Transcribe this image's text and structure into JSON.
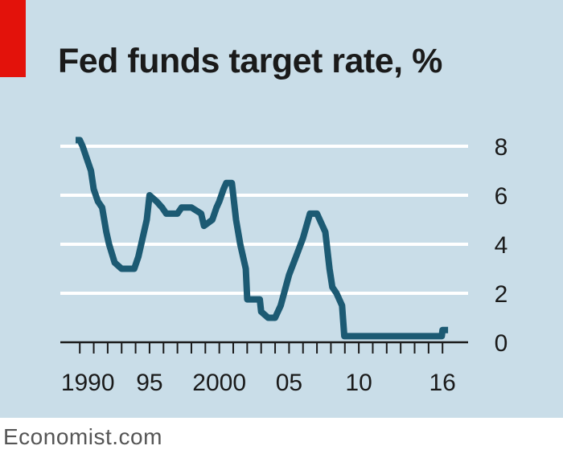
{
  "colors": {
    "background": "#c9dde8",
    "accent": "#e3120b",
    "line": "#1c5a73",
    "grid": "#ffffff",
    "text": "#1a1a1a",
    "source_text": "#555555"
  },
  "footer": {
    "source": "Economist.com"
  },
  "chart_data": {
    "type": "line",
    "title": "Fed funds target rate, %",
    "xlabel": "",
    "ylabel": "",
    "xlim": [
      1989.5,
      2016.5
    ],
    "ylim": [
      0,
      8
    ],
    "grid": true,
    "y_ticks": [
      0,
      2,
      4,
      6,
      8
    ],
    "y_tick_labels": [
      "0",
      "2",
      "4",
      "6",
      "8"
    ],
    "x_tick_labels": [
      {
        "value": 1990,
        "label": "1990"
      },
      {
        "value": 1995,
        "label": "95"
      },
      {
        "value": 2000,
        "label": "2000"
      },
      {
        "value": 2005,
        "label": "05"
      },
      {
        "value": 2010,
        "label": "10"
      },
      {
        "value": 2016,
        "label": "16"
      }
    ],
    "series": [
      {
        "x": [
          1989.7,
          1990.0,
          1990.2,
          1990.5,
          1990.8,
          1991.0,
          1991.3,
          1991.6,
          1991.9,
          1992.1,
          1992.5,
          1993.0,
          1993.5,
          1993.9,
          1994.2,
          1994.5,
          1994.8,
          1995.0,
          1995.5,
          1995.9,
          1996.2,
          1997.0,
          1997.3,
          1998.0,
          1998.7,
          1998.9,
          1999.5,
          1999.8,
          2000.0,
          2000.3,
          2000.5,
          2000.9,
          2001.2,
          2001.5,
          2001.9,
          2002.0,
          2002.9,
          2003.0,
          2003.5,
          2004.0,
          2004.4,
          2005.0,
          2005.5,
          2006.0,
          2006.5,
          2007.0,
          2007.6,
          2007.9,
          2008.1,
          2008.4,
          2008.8,
          2008.96,
          2015.95,
          2016.0,
          2016.4
        ],
        "y": [
          8.25,
          8.25,
          8.0,
          7.5,
          7.0,
          6.25,
          5.75,
          5.5,
          4.5,
          4.0,
          3.25,
          3.0,
          3.0,
          3.0,
          3.5,
          4.25,
          5.0,
          6.0,
          5.75,
          5.5,
          5.25,
          5.25,
          5.5,
          5.5,
          5.25,
          4.75,
          5.0,
          5.5,
          5.75,
          6.25,
          6.5,
          6.5,
          5.0,
          4.0,
          3.0,
          1.75,
          1.75,
          1.25,
          1.0,
          1.0,
          1.5,
          2.75,
          3.5,
          4.25,
          5.25,
          5.25,
          4.5,
          3.0,
          2.25,
          2.0,
          1.5,
          0.25,
          0.25,
          0.5,
          0.5
        ]
      }
    ]
  }
}
